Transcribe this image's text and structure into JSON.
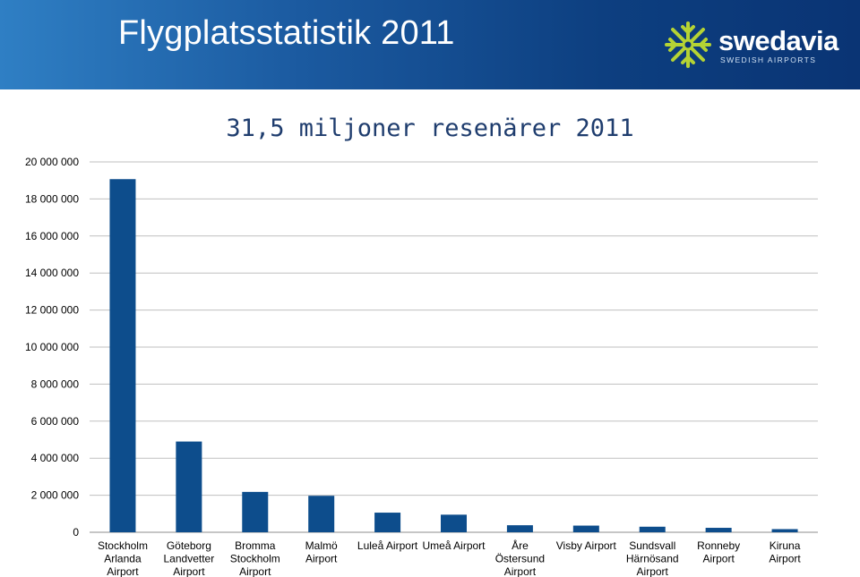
{
  "header": {
    "title": "Flygplatsstatistik 2011",
    "logo_name": "swedavia",
    "logo_sub": "SWEDISH AIRPORTS"
  },
  "colors": {
    "bar": "#0d4d8c",
    "grid": "#bfbfbf",
    "logo_flake": "#b5d334"
  },
  "icons": {
    "logo": "snowflake-icon"
  },
  "chart_data": {
    "type": "bar",
    "title": "31,5 miljoner resenärer 2011",
    "xlabel": "",
    "ylabel": "",
    "ylim": [
      0,
      20000000
    ],
    "yticks": [
      0,
      2000000,
      4000000,
      6000000,
      8000000,
      10000000,
      12000000,
      14000000,
      16000000,
      18000000,
      20000000
    ],
    "ytick_labels": [
      "0",
      "2 000 000",
      "4 000 000",
      "6 000 000",
      "8 000 000",
      "10 000 000",
      "12 000 000",
      "14 000 000",
      "16 000 000",
      "18 000 000",
      "20 000 000"
    ],
    "grid": true,
    "categories": [
      [
        "Stockholm",
        "Arlanda",
        "Airport"
      ],
      [
        "Göteborg",
        "Landvetter",
        "Airport"
      ],
      [
        "Bromma",
        "Stockholm",
        "Airport"
      ],
      [
        "Malmö",
        "Airport"
      ],
      [
        "Luleå Airport"
      ],
      [
        "Umeå Airport"
      ],
      [
        "Åre",
        "Östersund",
        "Airport"
      ],
      [
        "Visby Airport"
      ],
      [
        "Sundsvall",
        "Härnösand",
        "Airport"
      ],
      [
        "Ronneby",
        "Airport"
      ],
      [
        "Kiruna",
        "Airport"
      ]
    ],
    "values": [
      19070000,
      4900000,
      2180000,
      1970000,
      1060000,
      950000,
      380000,
      360000,
      300000,
      240000,
      170000
    ]
  }
}
